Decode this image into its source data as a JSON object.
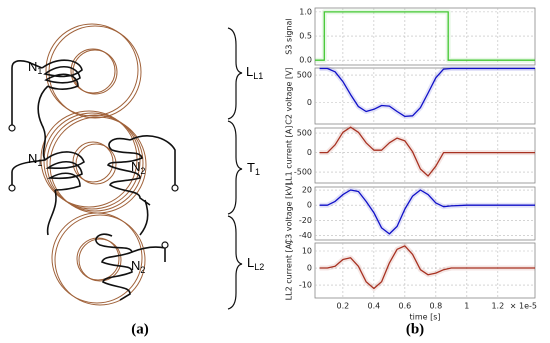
{
  "diagram": {
    "windings": [
      "N",
      "N",
      "N",
      "N"
    ],
    "winding_subs": [
      "1",
      "1",
      "2",
      "2"
    ],
    "inductors": [
      {
        "main": "L",
        "sub": "L1"
      },
      {
        "main": "T",
        "sub": "1"
      },
      {
        "main": "L",
        "sub": "L2"
      }
    ]
  },
  "captions": [
    "(a)",
    "(b)"
  ],
  "chart_data": [
    {
      "type": "line",
      "ylabel": "S3 signal",
      "color": "#44c833",
      "x": [
        0.02,
        0.08,
        0.08,
        0.88,
        0.88,
        1.44
      ],
      "values": [
        0,
        0,
        1,
        1,
        0,
        0
      ],
      "xlim": [
        0.02,
        1.44
      ],
      "xticks": [
        0.2,
        0.4,
        0.6,
        0.8,
        1,
        1.2
      ],
      "ylim": [
        -0.1,
        1.08
      ],
      "yticks": [
        {
          "value": 0,
          "label": "0.0"
        },
        {
          "value": 0.5,
          "label": "0.5"
        },
        {
          "value": 1,
          "label": "1.0"
        }
      ],
      "grid": true
    },
    {
      "type": "line",
      "ylabel": "C2 voltage [V]",
      "color": "#1010c8",
      "x": [
        0.05,
        0.1,
        0.15,
        0.2,
        0.25,
        0.3,
        0.35,
        0.4,
        0.45,
        0.5,
        0.55,
        0.6,
        0.65,
        0.7,
        0.75,
        0.8,
        0.85,
        0.9,
        1.0,
        1.1,
        1.2,
        1.3,
        1.44
      ],
      "values": [
        620,
        620,
        560,
        380,
        140,
        -80,
        -170,
        -130,
        -60,
        -70,
        -170,
        -260,
        -250,
        -100,
        170,
        450,
        610,
        620,
        620,
        620,
        620,
        620,
        620
      ],
      "xlim": [
        0.02,
        1.44
      ],
      "xticks": [
        0.2,
        0.4,
        0.6,
        0.8,
        1,
        1.2
      ],
      "ylim": [
        -400,
        630
      ],
      "yticks": [
        0,
        500
      ],
      "grid": true
    },
    {
      "type": "line",
      "ylabel": "LL1 current [A]",
      "color": "#a83222",
      "x": [
        0.05,
        0.1,
        0.15,
        0.2,
        0.25,
        0.3,
        0.35,
        0.4,
        0.45,
        0.5,
        0.55,
        0.6,
        0.65,
        0.7,
        0.75,
        0.8,
        0.85,
        0.9,
        1.0,
        1.1,
        1.2,
        1.3,
        1.44
      ],
      "values": [
        0,
        0,
        200,
        520,
        650,
        520,
        250,
        60,
        60,
        250,
        370,
        300,
        20,
        -420,
        -600,
        -350,
        0,
        0,
        0,
        0,
        0,
        0,
        0
      ],
      "xlim": [
        0.02,
        1.44
      ],
      "xticks": [
        0.2,
        0.4,
        0.6,
        0.8,
        1,
        1.2
      ],
      "ylim": [
        -780,
        630
      ],
      "yticks": [
        -500,
        0,
        500
      ],
      "grid": true
    },
    {
      "type": "line",
      "ylabel": "C3 voltage [kV]",
      "color": "#1010c8",
      "x": [
        0.05,
        0.1,
        0.15,
        0.2,
        0.25,
        0.3,
        0.35,
        0.4,
        0.45,
        0.5,
        0.55,
        0.6,
        0.65,
        0.7,
        0.75,
        0.8,
        0.85,
        0.9,
        1.0,
        1.1,
        1.2,
        1.3,
        1.44
      ],
      "values": [
        0,
        0,
        5,
        14,
        20,
        18,
        5,
        -10,
        -30,
        -38,
        -28,
        -5,
        12,
        20,
        14,
        3,
        -2,
        -1,
        0,
        0,
        0,
        0,
        0
      ],
      "xlim": [
        0.02,
        1.44
      ],
      "xticks": [
        0.2,
        0.4,
        0.6,
        0.8,
        1,
        1.2
      ],
      "ylim": [
        -46,
        24
      ],
      "yticks": [
        -40,
        -20,
        0,
        20
      ],
      "grid": true
    },
    {
      "type": "line",
      "ylabel": "LL2 current [A]",
      "color": "#a83222",
      "x": [
        0.05,
        0.1,
        0.15,
        0.2,
        0.25,
        0.3,
        0.35,
        0.4,
        0.45,
        0.5,
        0.55,
        0.6,
        0.65,
        0.7,
        0.75,
        0.8,
        0.85,
        0.9,
        1.0,
        1.1,
        1.2,
        1.3,
        1.44
      ],
      "values": [
        0,
        0,
        1,
        5,
        6,
        1,
        -8,
        -12,
        -8,
        3,
        11,
        13,
        8,
        -1,
        -4,
        -3,
        -1,
        0,
        0,
        0,
        0,
        0,
        0
      ],
      "xlim": [
        0.02,
        1.44
      ],
      "xticks": [
        0.2,
        0.4,
        0.6,
        0.8,
        1,
        1.2
      ],
      "ylim": [
        -17.6,
        14.7
      ],
      "yticks": [
        -10,
        0,
        10
      ],
      "grid": true,
      "xlabel": "time [s]",
      "xscale_label": "× 1e-5"
    }
  ]
}
